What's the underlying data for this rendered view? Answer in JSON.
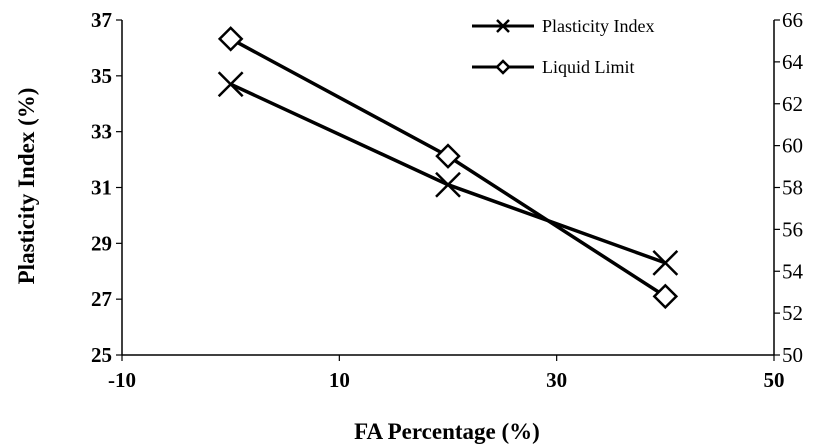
{
  "chart_data": {
    "type": "line",
    "xlabel": "FA Percentage (%)",
    "ylabel": "Plasticity Index  (%)",
    "y2label": "",
    "xlim": [
      -10,
      50
    ],
    "x_ticks": [
      -10,
      10,
      30,
      50
    ],
    "ylim": [
      25,
      37
    ],
    "y_ticks": [
      25,
      27,
      29,
      31,
      33,
      35,
      37
    ],
    "y2lim": [
      50,
      66
    ],
    "y2_ticks": [
      50,
      52,
      54,
      56,
      58,
      60,
      62,
      64,
      66
    ],
    "grid": false,
    "legend_position": "top-right",
    "series": [
      {
        "name": "Plasticity Index",
        "axis": "left",
        "marker": "x",
        "x": [
          0,
          20,
          40
        ],
        "values": [
          34.7,
          31.1,
          28.3
        ]
      },
      {
        "name": "Liquid Limit",
        "axis": "right",
        "marker": "diamond",
        "x": [
          0,
          20,
          40
        ],
        "values": [
          65.1,
          59.5,
          52.8
        ]
      }
    ],
    "colors": {
      "series": "#000000"
    }
  }
}
